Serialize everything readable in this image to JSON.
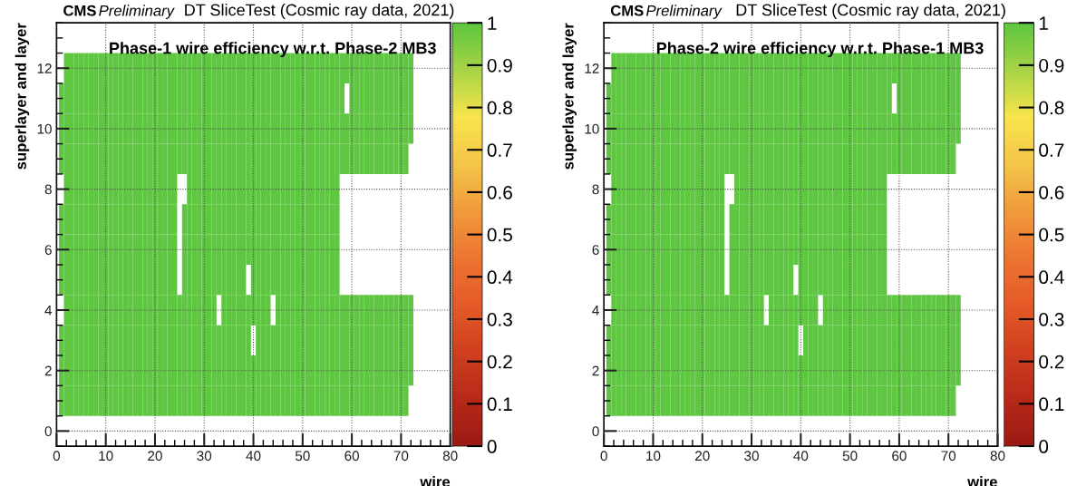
{
  "chart_data": [
    {
      "type": "heatmap",
      "title": "Phase-1 wire efficiency w.r.t. Phase-2 MB3",
      "xlabel": "wire",
      "ylabel": "superlayer and layer",
      "annotations": [
        "CMS",
        "Preliminary",
        "DT SliceTest (Cosmic ray data, 2021)"
      ],
      "x": [
        1,
        2,
        3,
        4,
        5,
        6,
        7,
        8,
        9,
        10,
        11,
        12,
        13,
        14,
        15,
        16,
        17,
        18,
        19,
        20,
        21,
        22,
        23,
        24,
        25,
        26,
        27,
        28,
        29,
        30,
        31,
        32,
        33,
        34,
        35,
        36,
        37,
        38,
        39,
        40,
        41,
        42,
        43,
        44,
        45,
        46,
        47,
        48,
        49,
        50,
        51,
        52,
        53,
        54,
        55,
        56,
        57,
        58,
        59,
        60,
        61,
        62,
        63,
        64,
        65,
        66,
        67,
        68,
        69,
        70,
        71,
        72
      ],
      "y": [
        12,
        11,
        10,
        9,
        8,
        7,
        6,
        5,
        4,
        3,
        2,
        1
      ],
      "cells": [
        [
          null,
          1,
          1,
          1,
          1,
          1,
          1,
          1,
          1,
          1,
          1,
          1,
          1,
          1,
          1,
          1,
          1,
          1,
          1,
          1,
          1,
          1,
          1,
          1,
          1,
          1,
          1,
          1,
          1,
          1,
          1,
          1,
          1,
          1,
          1,
          1,
          1,
          1,
          1,
          1,
          1,
          1,
          1,
          1,
          1,
          1,
          1,
          1,
          1,
          1,
          1,
          1,
          1,
          1,
          1,
          1,
          1,
          1,
          1,
          1,
          1,
          1,
          1,
          1,
          1,
          1,
          1,
          1,
          1,
          1,
          1,
          1
        ],
        [
          1,
          1,
          1,
          1,
          1,
          1,
          1,
          1,
          1,
          1,
          1,
          1,
          1,
          1,
          1,
          1,
          1,
          1,
          1,
          1,
          1,
          1,
          1,
          1,
          1,
          1,
          1,
          1,
          1,
          1,
          1,
          1,
          1,
          1,
          1,
          1,
          1,
          1,
          1,
          1,
          1,
          1,
          1,
          1,
          1,
          1,
          1,
          1,
          1,
          1,
          1,
          1,
          1,
          1,
          1,
          1,
          1,
          1,
          null,
          1,
          1,
          1,
          1,
          1,
          1,
          1,
          1,
          1,
          1,
          1,
          1,
          1
        ],
        [
          1,
          1,
          1,
          1,
          1,
          1,
          1,
          1,
          1,
          1,
          1,
          1,
          1,
          1,
          1,
          1,
          1,
          1,
          1,
          1,
          1,
          1,
          1,
          1,
          1,
          1,
          1,
          1,
          1,
          1,
          1,
          1,
          1,
          1,
          1,
          1,
          1,
          1,
          1,
          1,
          1,
          1,
          1,
          1,
          1,
          1,
          1,
          1,
          1,
          1,
          1,
          1,
          1,
          1,
          1,
          1,
          1,
          1,
          1,
          1,
          1,
          1,
          1,
          1,
          1,
          1,
          1,
          1,
          1,
          1,
          1,
          1
        ],
        [
          1,
          1,
          1,
          1,
          1,
          1,
          1,
          1,
          1,
          1,
          1,
          1,
          1,
          1,
          1,
          1,
          1,
          1,
          1,
          1,
          1,
          1,
          1,
          1,
          1,
          1,
          1,
          1,
          1,
          1,
          1,
          1,
          1,
          1,
          1,
          1,
          1,
          1,
          1,
          1,
          1,
          1,
          1,
          1,
          1,
          1,
          1,
          1,
          1,
          1,
          1,
          1,
          1,
          1,
          1,
          1,
          1,
          1,
          1,
          1,
          1,
          1,
          1,
          1,
          1,
          1,
          1,
          1,
          1,
          1,
          1,
          null
        ],
        [
          null,
          1,
          1,
          1,
          1,
          1,
          1,
          1,
          1,
          1,
          1,
          1,
          1,
          1,
          1,
          1,
          1,
          1,
          1,
          1,
          1,
          1,
          1,
          1,
          null,
          null,
          1,
          1,
          1,
          1,
          1,
          1,
          1,
          1,
          1,
          1,
          1,
          1,
          1,
          1,
          1,
          1,
          1,
          1,
          1,
          1,
          1,
          1,
          1,
          1,
          1,
          1,
          1,
          1,
          1,
          1,
          1,
          null,
          null,
          null,
          null,
          null,
          null,
          null,
          null,
          null,
          null,
          null,
          null,
          null,
          null,
          null
        ],
        [
          1,
          1,
          1,
          1,
          1,
          1,
          1,
          1,
          1,
          1,
          1,
          1,
          1,
          1,
          1,
          1,
          1,
          1,
          1,
          1,
          1,
          1,
          1,
          1,
          null,
          1,
          1,
          1,
          1,
          1,
          1,
          1,
          1,
          1,
          1,
          1,
          1,
          1,
          1,
          1,
          1,
          1,
          1,
          1,
          1,
          1,
          1,
          1,
          1,
          1,
          1,
          1,
          1,
          1,
          1,
          1,
          1,
          null,
          null,
          null,
          null,
          null,
          null,
          null,
          null,
          null,
          null,
          null,
          null,
          null,
          null,
          null
        ],
        [
          1,
          1,
          1,
          1,
          1,
          1,
          1,
          1,
          1,
          1,
          1,
          1,
          1,
          1,
          1,
          1,
          1,
          1,
          1,
          1,
          1,
          1,
          1,
          1,
          null,
          1,
          1,
          1,
          1,
          1,
          1,
          1,
          1,
          1,
          1,
          1,
          1,
          1,
          1,
          1,
          1,
          1,
          1,
          1,
          1,
          1,
          1,
          1,
          1,
          1,
          1,
          1,
          1,
          1,
          1,
          1,
          1,
          null,
          null,
          null,
          null,
          null,
          null,
          null,
          null,
          null,
          null,
          null,
          null,
          null,
          null,
          null
        ],
        [
          1,
          1,
          1,
          1,
          1,
          1,
          1,
          1,
          1,
          1,
          1,
          1,
          1,
          1,
          1,
          1,
          1,
          1,
          1,
          1,
          1,
          1,
          1,
          1,
          null,
          1,
          1,
          1,
          1,
          1,
          1,
          1,
          1,
          1,
          1,
          1,
          1,
          1,
          null,
          1,
          1,
          1,
          1,
          1,
          1,
          1,
          1,
          1,
          1,
          1,
          1,
          1,
          1,
          1,
          1,
          1,
          1,
          null,
          null,
          null,
          null,
          null,
          null,
          null,
          null,
          null,
          null,
          null,
          null,
          null,
          null,
          null
        ],
        [
          null,
          1,
          1,
          1,
          1,
          1,
          1,
          1,
          1,
          1,
          1,
          1,
          1,
          1,
          1,
          1,
          1,
          1,
          1,
          1,
          1,
          1,
          1,
          1,
          1,
          1,
          1,
          1,
          1,
          1,
          1,
          1,
          null,
          1,
          1,
          1,
          1,
          1,
          1,
          1,
          1,
          1,
          1,
          null,
          1,
          1,
          1,
          1,
          1,
          1,
          1,
          1,
          1,
          1,
          1,
          1,
          1,
          1,
          1,
          1,
          1,
          1,
          1,
          1,
          1,
          1,
          1,
          1,
          1,
          1,
          1,
          1
        ],
        [
          1,
          1,
          1,
          1,
          1,
          1,
          1,
          1,
          1,
          1,
          1,
          1,
          1,
          1,
          1,
          1,
          1,
          1,
          1,
          1,
          1,
          1,
          1,
          1,
          1,
          1,
          1,
          1,
          1,
          1,
          1,
          1,
          1,
          1,
          1,
          1,
          1,
          1,
          1,
          null,
          1,
          1,
          1,
          1,
          1,
          1,
          1,
          1,
          1,
          1,
          1,
          1,
          1,
          1,
          1,
          1,
          1,
          1,
          1,
          1,
          1,
          1,
          1,
          1,
          1,
          1,
          1,
          1,
          1,
          1,
          1,
          1
        ],
        [
          1,
          1,
          1,
          1,
          1,
          1,
          1,
          1,
          1,
          1,
          1,
          1,
          1,
          1,
          1,
          1,
          1,
          1,
          1,
          1,
          1,
          1,
          1,
          1,
          1,
          1,
          1,
          1,
          1,
          1,
          1,
          1,
          1,
          1,
          1,
          1,
          1,
          1,
          1,
          1,
          1,
          1,
          1,
          1,
          1,
          1,
          1,
          1,
          1,
          1,
          1,
          1,
          1,
          1,
          1,
          1,
          1,
          1,
          1,
          1,
          1,
          1,
          1,
          1,
          1,
          1,
          1,
          1,
          1,
          1,
          1,
          1
        ],
        [
          1,
          1,
          1,
          1,
          1,
          1,
          1,
          1,
          1,
          1,
          1,
          1,
          1,
          1,
          1,
          1,
          1,
          1,
          1,
          1,
          1,
          1,
          1,
          1,
          1,
          1,
          1,
          1,
          1,
          1,
          1,
          1,
          1,
          1,
          1,
          1,
          1,
          1,
          1,
          1,
          1,
          1,
          1,
          1,
          1,
          1,
          1,
          1,
          1,
          1,
          1,
          1,
          1,
          1,
          1,
          1,
          1,
          1,
          1,
          1,
          1,
          1,
          1,
          1,
          1,
          1,
          1,
          1,
          1,
          1,
          1,
          null
        ]
      ],
      "colors": [
        "#9a1b12",
        "#b8291a",
        "#d0401f",
        "#e55a28",
        "#ec7432",
        "#f09a3c",
        "#f4c448",
        "#f8e44c",
        "#a8d446",
        "#5ec640"
      ],
      "clim": [
        0,
        1
      ],
      "cticks": [
        0,
        0.1,
        0.2,
        0.3,
        0.4,
        0.5,
        0.6,
        0.7,
        0.8,
        0.9,
        1
      ],
      "xlim": [
        0,
        80
      ],
      "xticks": [
        0,
        10,
        20,
        30,
        40,
        50,
        60,
        70,
        80
      ],
      "ylim": [
        -0.5,
        13.5
      ],
      "yticks": [
        0,
        2,
        4,
        6,
        8,
        10,
        12
      ],
      "grid": true
    },
    {
      "type": "heatmap",
      "title": "Phase-2 wire efficiency w.r.t. Phase-1 MB3",
      "xlabel": "wire",
      "ylabel": "superlayer and layer",
      "annotations": [
        "CMS",
        "Preliminary",
        "DT SliceTest (Cosmic ray data, 2021)"
      ],
      "x": [
        1,
        2,
        3,
        4,
        5,
        6,
        7,
        8,
        9,
        10,
        11,
        12,
        13,
        14,
        15,
        16,
        17,
        18,
        19,
        20,
        21,
        22,
        23,
        24,
        25,
        26,
        27,
        28,
        29,
        30,
        31,
        32,
        33,
        34,
        35,
        36,
        37,
        38,
        39,
        40,
        41,
        42,
        43,
        44,
        45,
        46,
        47,
        48,
        49,
        50,
        51,
        52,
        53,
        54,
        55,
        56,
        57,
        58,
        59,
        60,
        61,
        62,
        63,
        64,
        65,
        66,
        67,
        68,
        69,
        70,
        71,
        72
      ],
      "y": [
        12,
        11,
        10,
        9,
        8,
        7,
        6,
        5,
        4,
        3,
        2,
        1
      ],
      "cells": [
        [
          null,
          1,
          1,
          1,
          1,
          1,
          1,
          1,
          1,
          1,
          1,
          1,
          1,
          1,
          1,
          1,
          1,
          1,
          1,
          1,
          1,
          1,
          1,
          1,
          1,
          1,
          1,
          1,
          1,
          1,
          1,
          1,
          1,
          1,
          1,
          1,
          1,
          1,
          1,
          1,
          1,
          1,
          1,
          1,
          1,
          1,
          1,
          1,
          1,
          1,
          1,
          1,
          1,
          1,
          1,
          1,
          1,
          1,
          1,
          1,
          1,
          1,
          1,
          1,
          1,
          1,
          1,
          1,
          1,
          1,
          1,
          1
        ],
        [
          1,
          1,
          1,
          1,
          1,
          1,
          1,
          1,
          1,
          1,
          1,
          1,
          1,
          1,
          1,
          1,
          1,
          1,
          1,
          1,
          1,
          1,
          1,
          1,
          1,
          1,
          1,
          1,
          1,
          1,
          1,
          1,
          1,
          1,
          1,
          1,
          1,
          1,
          1,
          1,
          1,
          1,
          1,
          1,
          1,
          1,
          1,
          1,
          1,
          1,
          1,
          1,
          1,
          1,
          1,
          1,
          1,
          1,
          null,
          1,
          1,
          1,
          1,
          1,
          1,
          1,
          1,
          1,
          1,
          1,
          1,
          1
        ],
        [
          1,
          1,
          1,
          1,
          1,
          1,
          1,
          1,
          1,
          1,
          1,
          1,
          1,
          1,
          1,
          1,
          1,
          1,
          1,
          1,
          1,
          1,
          1,
          1,
          1,
          1,
          1,
          1,
          1,
          1,
          1,
          1,
          1,
          1,
          1,
          1,
          1,
          1,
          1,
          1,
          1,
          1,
          1,
          1,
          1,
          1,
          1,
          1,
          1,
          1,
          1,
          1,
          1,
          1,
          1,
          1,
          1,
          1,
          1,
          1,
          1,
          1,
          1,
          1,
          1,
          1,
          1,
          1,
          1,
          1,
          1,
          1
        ],
        [
          1,
          1,
          1,
          1,
          1,
          1,
          1,
          1,
          1,
          1,
          1,
          1,
          1,
          1,
          1,
          1,
          1,
          1,
          1,
          1,
          1,
          1,
          1,
          1,
          1,
          1,
          1,
          1,
          1,
          1,
          1,
          1,
          1,
          1,
          1,
          1,
          1,
          1,
          1,
          1,
          1,
          1,
          1,
          1,
          1,
          1,
          1,
          1,
          1,
          1,
          1,
          1,
          1,
          1,
          1,
          1,
          1,
          1,
          1,
          1,
          1,
          1,
          1,
          1,
          1,
          1,
          1,
          1,
          1,
          1,
          1,
          null
        ],
        [
          null,
          1,
          1,
          1,
          1,
          1,
          1,
          1,
          1,
          1,
          1,
          1,
          1,
          1,
          1,
          1,
          1,
          1,
          1,
          1,
          1,
          1,
          1,
          1,
          null,
          null,
          1,
          1,
          1,
          1,
          1,
          1,
          1,
          1,
          1,
          1,
          1,
          1,
          1,
          1,
          1,
          1,
          1,
          1,
          1,
          1,
          1,
          1,
          1,
          1,
          1,
          1,
          1,
          1,
          1,
          1,
          1,
          null,
          null,
          null,
          null,
          null,
          null,
          null,
          null,
          null,
          null,
          null,
          null,
          null,
          null,
          null
        ],
        [
          1,
          1,
          1,
          1,
          1,
          1,
          1,
          1,
          1,
          1,
          1,
          1,
          1,
          1,
          1,
          1,
          1,
          1,
          1,
          1,
          1,
          1,
          1,
          1,
          null,
          1,
          1,
          1,
          1,
          1,
          1,
          1,
          1,
          1,
          1,
          1,
          1,
          1,
          1,
          1,
          1,
          1,
          1,
          1,
          1,
          1,
          1,
          1,
          1,
          1,
          1,
          1,
          1,
          1,
          1,
          1,
          1,
          null,
          null,
          null,
          null,
          null,
          null,
          null,
          null,
          null,
          null,
          null,
          null,
          null,
          null,
          null
        ],
        [
          1,
          1,
          1,
          1,
          1,
          1,
          1,
          1,
          1,
          1,
          1,
          1,
          1,
          1,
          1,
          1,
          1,
          1,
          1,
          1,
          1,
          1,
          1,
          1,
          null,
          1,
          1,
          1,
          1,
          1,
          1,
          1,
          1,
          1,
          1,
          1,
          1,
          1,
          1,
          1,
          1,
          1,
          1,
          1,
          1,
          1,
          1,
          1,
          1,
          1,
          1,
          1,
          1,
          1,
          1,
          1,
          1,
          null,
          null,
          null,
          null,
          null,
          null,
          null,
          null,
          null,
          null,
          null,
          null,
          null,
          null,
          null
        ],
        [
          1,
          1,
          1,
          1,
          1,
          1,
          1,
          1,
          1,
          1,
          1,
          1,
          1,
          1,
          1,
          1,
          1,
          1,
          1,
          1,
          1,
          1,
          1,
          1,
          null,
          1,
          1,
          1,
          1,
          1,
          1,
          1,
          1,
          1,
          1,
          1,
          1,
          1,
          null,
          1,
          1,
          1,
          1,
          1,
          1,
          1,
          1,
          1,
          1,
          1,
          1,
          1,
          1,
          1,
          1,
          1,
          1,
          null,
          null,
          null,
          null,
          null,
          null,
          null,
          null,
          null,
          null,
          null,
          null,
          null,
          null,
          null
        ],
        [
          null,
          1,
          1,
          1,
          1,
          1,
          1,
          1,
          1,
          1,
          1,
          1,
          1,
          1,
          1,
          1,
          1,
          1,
          1,
          1,
          1,
          1,
          1,
          1,
          1,
          1,
          1,
          1,
          1,
          1,
          1,
          1,
          null,
          1,
          1,
          1,
          1,
          1,
          1,
          1,
          1,
          1,
          1,
          null,
          1,
          1,
          1,
          1,
          1,
          1,
          1,
          1,
          1,
          1,
          1,
          1,
          1,
          1,
          1,
          1,
          1,
          1,
          1,
          1,
          1,
          1,
          1,
          1,
          1,
          1,
          1,
          1
        ],
        [
          1,
          1,
          1,
          1,
          1,
          1,
          1,
          1,
          1,
          1,
          1,
          1,
          1,
          1,
          1,
          1,
          1,
          1,
          1,
          1,
          1,
          1,
          1,
          1,
          1,
          1,
          1,
          1,
          1,
          1,
          1,
          1,
          1,
          1,
          1,
          1,
          1,
          1,
          1,
          null,
          1,
          1,
          1,
          1,
          1,
          1,
          1,
          1,
          1,
          1,
          1,
          1,
          1,
          1,
          1,
          1,
          1,
          1,
          1,
          1,
          1,
          1,
          1,
          1,
          1,
          1,
          1,
          1,
          1,
          1,
          1,
          1
        ],
        [
          1,
          1,
          1,
          1,
          1,
          1,
          1,
          1,
          1,
          1,
          1,
          1,
          1,
          1,
          1,
          1,
          1,
          1,
          1,
          1,
          1,
          1,
          1,
          1,
          1,
          1,
          1,
          1,
          1,
          1,
          1,
          1,
          1,
          1,
          1,
          1,
          1,
          1,
          1,
          1,
          1,
          1,
          1,
          1,
          1,
          1,
          1,
          1,
          1,
          1,
          1,
          1,
          1,
          1,
          1,
          1,
          1,
          1,
          1,
          1,
          1,
          1,
          1,
          1,
          1,
          1,
          1,
          1,
          1,
          1,
          1,
          1
        ],
        [
          1,
          1,
          1,
          1,
          1,
          1,
          1,
          1,
          1,
          1,
          1,
          1,
          1,
          1,
          1,
          1,
          1,
          1,
          1,
          1,
          1,
          1,
          1,
          1,
          1,
          1,
          1,
          1,
          1,
          1,
          1,
          1,
          1,
          1,
          1,
          1,
          1,
          1,
          1,
          1,
          1,
          1,
          1,
          1,
          1,
          1,
          1,
          1,
          1,
          1,
          1,
          1,
          1,
          1,
          1,
          1,
          1,
          1,
          1,
          1,
          1,
          1,
          1,
          1,
          1,
          1,
          1,
          1,
          1,
          1,
          1,
          null
        ]
      ],
      "colors": [
        "#9a1b12",
        "#b8291a",
        "#d0401f",
        "#e55a28",
        "#ec7432",
        "#f09a3c",
        "#f4c448",
        "#f8e44c",
        "#a8d446",
        "#5ec640"
      ],
      "clim": [
        0,
        1
      ],
      "cticks": [
        0,
        0.1,
        0.2,
        0.3,
        0.4,
        0.5,
        0.6,
        0.7,
        0.8,
        0.9,
        1
      ],
      "xlim": [
        0,
        80
      ],
      "xticks": [
        0,
        10,
        20,
        30,
        40,
        50,
        60,
        70,
        80
      ],
      "ylim": [
        -0.5,
        13.5
      ],
      "yticks": [
        0,
        2,
        4,
        6,
        8,
        10,
        12
      ],
      "grid": true
    }
  ]
}
